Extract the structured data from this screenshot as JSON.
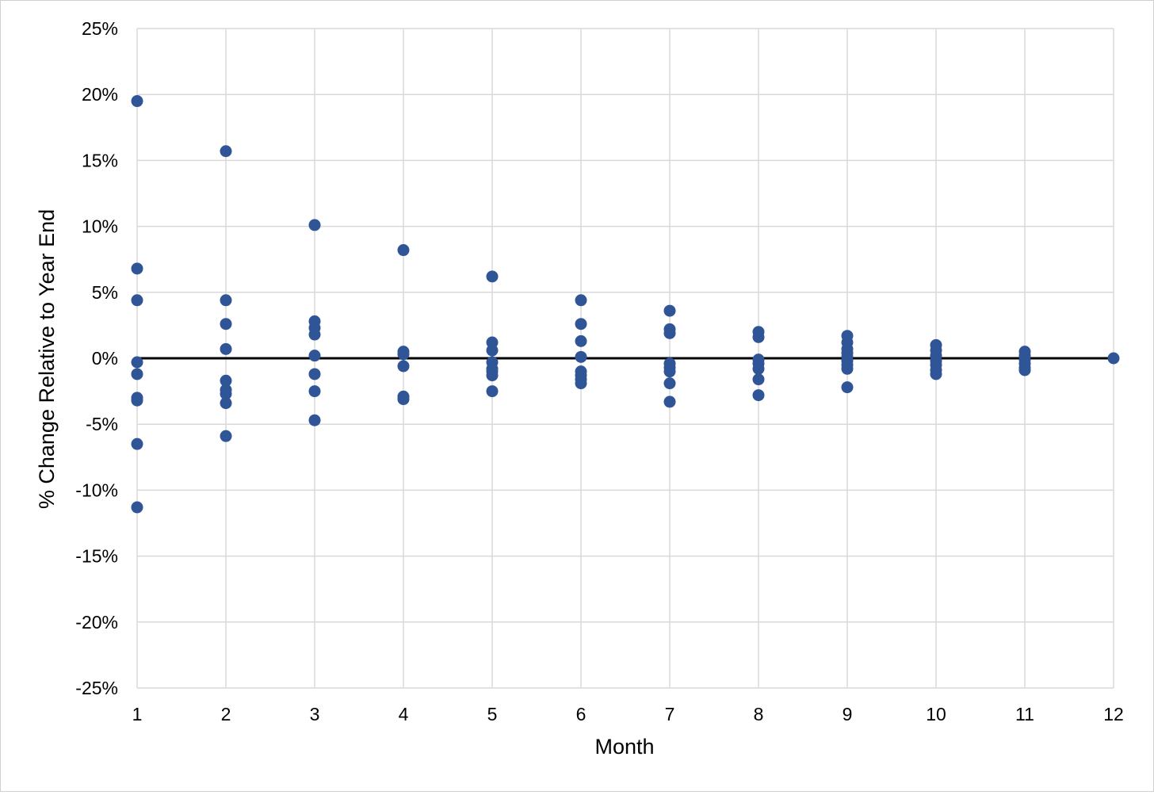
{
  "chart_data": {
    "type": "scatter",
    "title": "",
    "xlabel": "Month",
    "ylabel": "% Change Relative to Year End",
    "xlim": [
      1,
      12
    ],
    "ylim": [
      -25,
      25
    ],
    "x_ticks": [
      1,
      2,
      3,
      4,
      5,
      6,
      7,
      8,
      9,
      10,
      11,
      12
    ],
    "x_tick_labels": [
      "1",
      "2",
      "3",
      "4",
      "5",
      "6",
      "7",
      "8",
      "9",
      "10",
      "11",
      "12"
    ],
    "y_ticks": [
      25,
      20,
      15,
      10,
      5,
      0,
      -5,
      -10,
      -15,
      -20,
      -25
    ],
    "y_tick_labels": [
      "25%",
      "20%",
      "15%",
      "10%",
      "5%",
      "0%",
      "-5%",
      "-10%",
      "-15%",
      "-20%",
      "-25%"
    ],
    "grid": true,
    "reference_line_y": 0,
    "legend": "none",
    "marker_color": "#2f5597",
    "series": [
      {
        "points": [
          {
            "x": 1,
            "y": 19.5
          },
          {
            "x": 1,
            "y": 6.8
          },
          {
            "x": 1,
            "y": 4.4
          },
          {
            "x": 1,
            "y": -0.3
          },
          {
            "x": 1,
            "y": -1.2
          },
          {
            "x": 1,
            "y": -3.0
          },
          {
            "x": 1,
            "y": -3.2
          },
          {
            "x": 1,
            "y": -6.5
          },
          {
            "x": 1,
            "y": -11.3
          },
          {
            "x": 2,
            "y": 15.7
          },
          {
            "x": 2,
            "y": 4.4
          },
          {
            "x": 2,
            "y": 2.6
          },
          {
            "x": 2,
            "y": 0.7
          },
          {
            "x": 2,
            "y": -1.7
          },
          {
            "x": 2,
            "y": -2.4
          },
          {
            "x": 2,
            "y": -2.7
          },
          {
            "x": 2,
            "y": -3.4
          },
          {
            "x": 2,
            "y": -5.9
          },
          {
            "x": 3,
            "y": 10.1
          },
          {
            "x": 3,
            "y": 2.8
          },
          {
            "x": 3,
            "y": 2.3
          },
          {
            "x": 3,
            "y": 1.8
          },
          {
            "x": 3,
            "y": 0.2
          },
          {
            "x": 3,
            "y": -1.2
          },
          {
            "x": 3,
            "y": -2.5
          },
          {
            "x": 3,
            "y": -4.7
          },
          {
            "x": 4,
            "y": 8.2
          },
          {
            "x": 4,
            "y": 0.5
          },
          {
            "x": 4,
            "y": 0.3
          },
          {
            "x": 4,
            "y": -0.6
          },
          {
            "x": 4,
            "y": -2.9
          },
          {
            "x": 4,
            "y": -3.1
          },
          {
            "x": 5,
            "y": 6.2
          },
          {
            "x": 5,
            "y": 1.2
          },
          {
            "x": 5,
            "y": 0.6
          },
          {
            "x": 5,
            "y": -0.3
          },
          {
            "x": 5,
            "y": -0.8
          },
          {
            "x": 5,
            "y": -1.0
          },
          {
            "x": 5,
            "y": -1.3
          },
          {
            "x": 5,
            "y": -2.5
          },
          {
            "x": 6,
            "y": 4.4
          },
          {
            "x": 6,
            "y": 2.6
          },
          {
            "x": 6,
            "y": 1.3
          },
          {
            "x": 6,
            "y": 0.1
          },
          {
            "x": 6,
            "y": -1.0
          },
          {
            "x": 6,
            "y": -1.3
          },
          {
            "x": 6,
            "y": -1.6
          },
          {
            "x": 6,
            "y": -1.9
          },
          {
            "x": 7,
            "y": 3.6
          },
          {
            "x": 7,
            "y": 2.2
          },
          {
            "x": 7,
            "y": 1.9
          },
          {
            "x": 7,
            "y": -0.4
          },
          {
            "x": 7,
            "y": -0.7
          },
          {
            "x": 7,
            "y": -1.0
          },
          {
            "x": 7,
            "y": -1.9
          },
          {
            "x": 7,
            "y": -3.3
          },
          {
            "x": 8,
            "y": 2.0
          },
          {
            "x": 8,
            "y": 1.6
          },
          {
            "x": 8,
            "y": -0.1
          },
          {
            "x": 8,
            "y": -0.4
          },
          {
            "x": 8,
            "y": -0.8
          },
          {
            "x": 8,
            "y": -1.6
          },
          {
            "x": 8,
            "y": -2.8
          },
          {
            "x": 9,
            "y": 1.7
          },
          {
            "x": 9,
            "y": 1.2
          },
          {
            "x": 9,
            "y": 0.7
          },
          {
            "x": 9,
            "y": 0.4
          },
          {
            "x": 9,
            "y": 0.1
          },
          {
            "x": 9,
            "y": -0.2
          },
          {
            "x": 9,
            "y": -0.5
          },
          {
            "x": 9,
            "y": -0.8
          },
          {
            "x": 9,
            "y": -2.2
          },
          {
            "x": 10,
            "y": 1.0
          },
          {
            "x": 10,
            "y": 0.6
          },
          {
            "x": 10,
            "y": 0.2
          },
          {
            "x": 10,
            "y": -0.2
          },
          {
            "x": 10,
            "y": -0.5
          },
          {
            "x": 10,
            "y": -0.9
          },
          {
            "x": 10,
            "y": -1.2
          },
          {
            "x": 11,
            "y": 0.5
          },
          {
            "x": 11,
            "y": 0.2
          },
          {
            "x": 11,
            "y": -0.1
          },
          {
            "x": 11,
            "y": -0.4
          },
          {
            "x": 11,
            "y": -0.7
          },
          {
            "x": 11,
            "y": -0.9
          },
          {
            "x": 12,
            "y": 0.0
          }
        ]
      }
    ]
  }
}
